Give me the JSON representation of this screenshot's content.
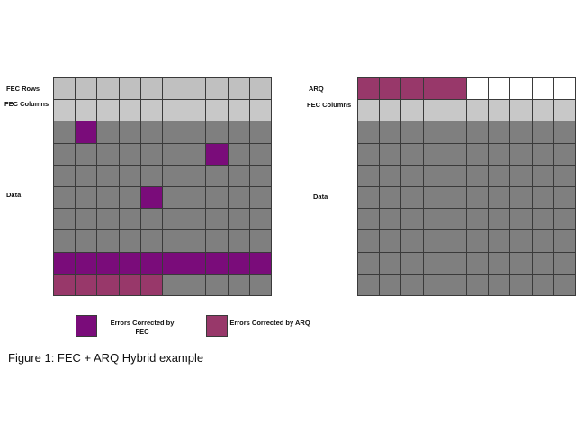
{
  "colors": {
    "data": "#7f7f7f",
    "fec_row": "#c0c0c0",
    "fec_col": "#c8c8c8",
    "fec_error": "#7a0c7a",
    "arq_error": "#98386a",
    "empty": "#ffffff"
  },
  "left_diagram": {
    "labels": {
      "fec_rows": "FEC Rows",
      "fec_columns": "FEC Columns",
      "data": "Data"
    },
    "rows": [
      [
        "R",
        "R",
        "R",
        "R",
        "R",
        "R",
        "R",
        "R",
        "R",
        "R"
      ],
      [
        "C",
        "C",
        "C",
        "C",
        "C",
        "C",
        "C",
        "C",
        "C",
        "C"
      ],
      [
        "D",
        "F",
        "D",
        "D",
        "D",
        "D",
        "D",
        "D",
        "D",
        "D"
      ],
      [
        "D",
        "D",
        "D",
        "D",
        "D",
        "D",
        "D",
        "F",
        "D",
        "D"
      ],
      [
        "D",
        "D",
        "D",
        "D",
        "D",
        "D",
        "D",
        "D",
        "D",
        "D"
      ],
      [
        "D",
        "D",
        "D",
        "D",
        "F",
        "D",
        "D",
        "D",
        "D",
        "D"
      ],
      [
        "D",
        "D",
        "D",
        "D",
        "D",
        "D",
        "D",
        "D",
        "D",
        "D"
      ],
      [
        "D",
        "D",
        "D",
        "D",
        "D",
        "D",
        "D",
        "D",
        "D",
        "D"
      ],
      [
        "F",
        "F",
        "F",
        "F",
        "F",
        "F",
        "F",
        "F",
        "F",
        "F"
      ],
      [
        "A",
        "A",
        "A",
        "A",
        "A",
        "D",
        "D",
        "D",
        "D",
        "D"
      ]
    ]
  },
  "right_diagram": {
    "labels": {
      "arq": "ARQ",
      "fec_columns": "FEC Columns",
      "data": "Data"
    },
    "rows": [
      [
        "A",
        "A",
        "A",
        "A",
        "A",
        "W",
        "W",
        "W",
        "W",
        "W"
      ],
      [
        "C",
        "C",
        "C",
        "C",
        "C",
        "C",
        "C",
        "C",
        "C",
        "C"
      ],
      [
        "D",
        "D",
        "D",
        "D",
        "D",
        "D",
        "D",
        "D",
        "D",
        "D"
      ],
      [
        "D",
        "D",
        "D",
        "D",
        "D",
        "D",
        "D",
        "D",
        "D",
        "D"
      ],
      [
        "D",
        "D",
        "D",
        "D",
        "D",
        "D",
        "D",
        "D",
        "D",
        "D"
      ],
      [
        "D",
        "D",
        "D",
        "D",
        "D",
        "D",
        "D",
        "D",
        "D",
        "D"
      ],
      [
        "D",
        "D",
        "D",
        "D",
        "D",
        "D",
        "D",
        "D",
        "D",
        "D"
      ],
      [
        "D",
        "D",
        "D",
        "D",
        "D",
        "D",
        "D",
        "D",
        "D",
        "D"
      ],
      [
        "D",
        "D",
        "D",
        "D",
        "D",
        "D",
        "D",
        "D",
        "D",
        "D"
      ],
      [
        "D",
        "D",
        "D",
        "D",
        "D",
        "D",
        "D",
        "D",
        "D",
        "D"
      ]
    ]
  },
  "legend": {
    "fec_label": "Errors Corrected by FEC",
    "arq_label": "Errors Corrected by ARQ"
  },
  "caption": "Figure 1: FEC + ARQ Hybrid example"
}
